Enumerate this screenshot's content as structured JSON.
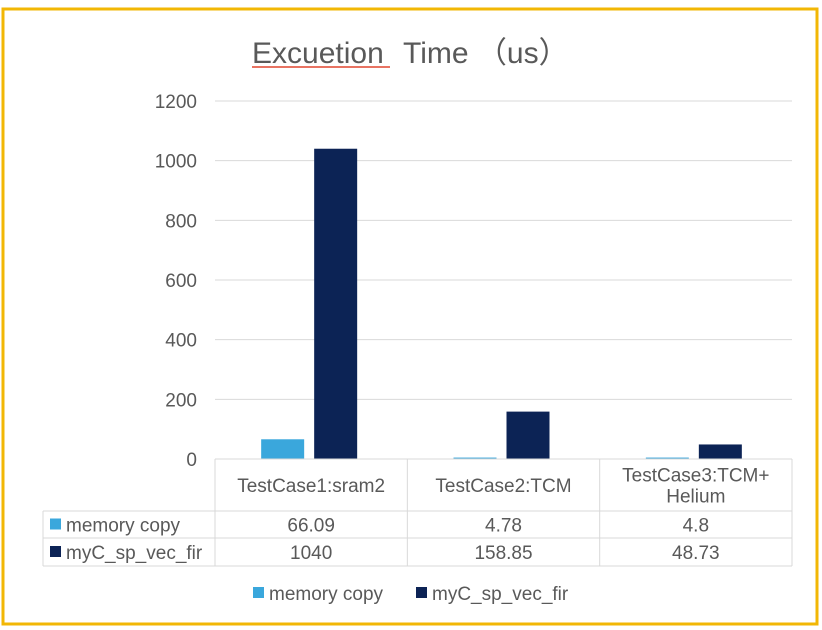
{
  "colors": {
    "border": "#f2b705",
    "grid": "#d9d9d9",
    "axis_text": "#595959",
    "spell_underline": "#e0452f"
  },
  "chart_data": {
    "type": "bar",
    "title": "Excuetion Time (us)",
    "title_word": "Excuetion",
    "title_rest": "Time （us）",
    "categories": [
      "TestCase1:sram2",
      "TestCase2:TCM",
      "TestCase3:TCM+ Helium"
    ],
    "category_lines": [
      [
        "TestCase1:sram2"
      ],
      [
        "TestCase2:TCM"
      ],
      [
        "TestCase3:TCM+",
        "Helium"
      ]
    ],
    "series": [
      {
        "name": "memory copy",
        "color": "#3aa7dc",
        "values": [
          66.09,
          4.78,
          4.8
        ],
        "labels": [
          "66.09",
          "4.78",
          "4.8"
        ]
      },
      {
        "name": "myC_sp_vec_fir",
        "color": "#0c2355",
        "values": [
          1040,
          158.85,
          48.73
        ],
        "labels": [
          "1040",
          "158.85",
          "48.73"
        ]
      }
    ],
    "ylim": [
      0,
      1200
    ],
    "yticks": [
      0,
      200,
      400,
      600,
      800,
      1000,
      1200
    ],
    "grid": true,
    "data_table": true,
    "legend_position": "bottom"
  }
}
